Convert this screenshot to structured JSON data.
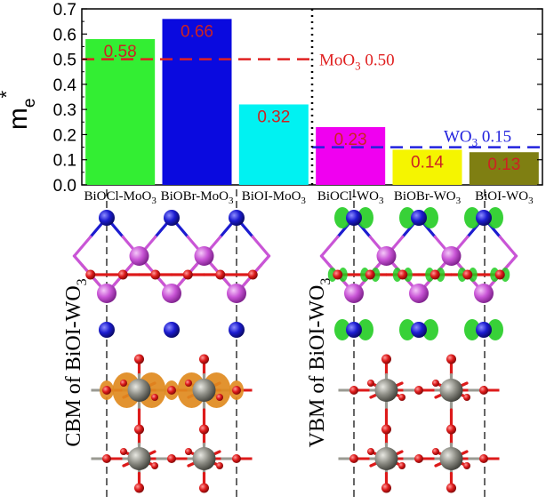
{
  "chart_data": {
    "type": "bar",
    "ylabel": "m",
    "ylabel_sub": "e",
    "ylabel_sup": "*",
    "ylim": [
      0,
      0.7
    ],
    "yticks": [
      "0.0",
      "0.1",
      "0.2",
      "0.3",
      "0.4",
      "0.5",
      "0.6",
      "0.7"
    ],
    "categories": [
      "BiOCl-MoO3",
      "BiOBr-MoO3",
      "BiOI-MoO3",
      "BiOCl-WO3",
      "BiOBr-WO3",
      "BiOI-WO3"
    ],
    "category_labels": [
      {
        "base": "BiOCl-MoO",
        "sub": "3"
      },
      {
        "base": "BiOBr-MoO",
        "sub": "3"
      },
      {
        "base": "BiOI-MoO",
        "sub": "3"
      },
      {
        "base": "BiOCl-WO",
        "sub": "3"
      },
      {
        "base": "BiOBr-WO",
        "sub": "3"
      },
      {
        "base": "BiOI-WO",
        "sub": "3"
      }
    ],
    "values": [
      0.58,
      0.66,
      0.32,
      0.23,
      0.14,
      0.13
    ],
    "value_labels": [
      "0.58",
      "0.66",
      "0.32",
      "0.23",
      "0.14",
      "0.13"
    ],
    "colors": [
      "#33ee33",
      "#0a0adf",
      "#00f2f2",
      "#f000f0",
      "#f5f500",
      "#7f7f12"
    ],
    "label_color": "#cc2222",
    "reference_lines": [
      {
        "value": 0.5,
        "color": "#e02020",
        "label_base": "MoO",
        "label_sub": "3",
        "label_tail": " 0.50",
        "span": "left"
      },
      {
        "value": 0.15,
        "color": "#2222dd",
        "label_base": "WO",
        "label_sub": "3",
        "label_tail": " 0.15",
        "span": "right"
      }
    ],
    "divider_after_category": 2
  },
  "structures": [
    {
      "label": "CBM of BiOI-WO3",
      "label_base": "CBM of BiOI-WO",
      "label_sub": "3",
      "density_color": "#e08a1e"
    },
    {
      "label": "VBM of BiOI-WO3",
      "label_base": "VBM of BiOI-WO",
      "label_sub": "3",
      "density_color": "#22cc22"
    }
  ],
  "atom_colors": {
    "bi": "#c955d6",
    "i": "#1c1cd0",
    "o": "#dd1a1a",
    "w": "#888880"
  }
}
